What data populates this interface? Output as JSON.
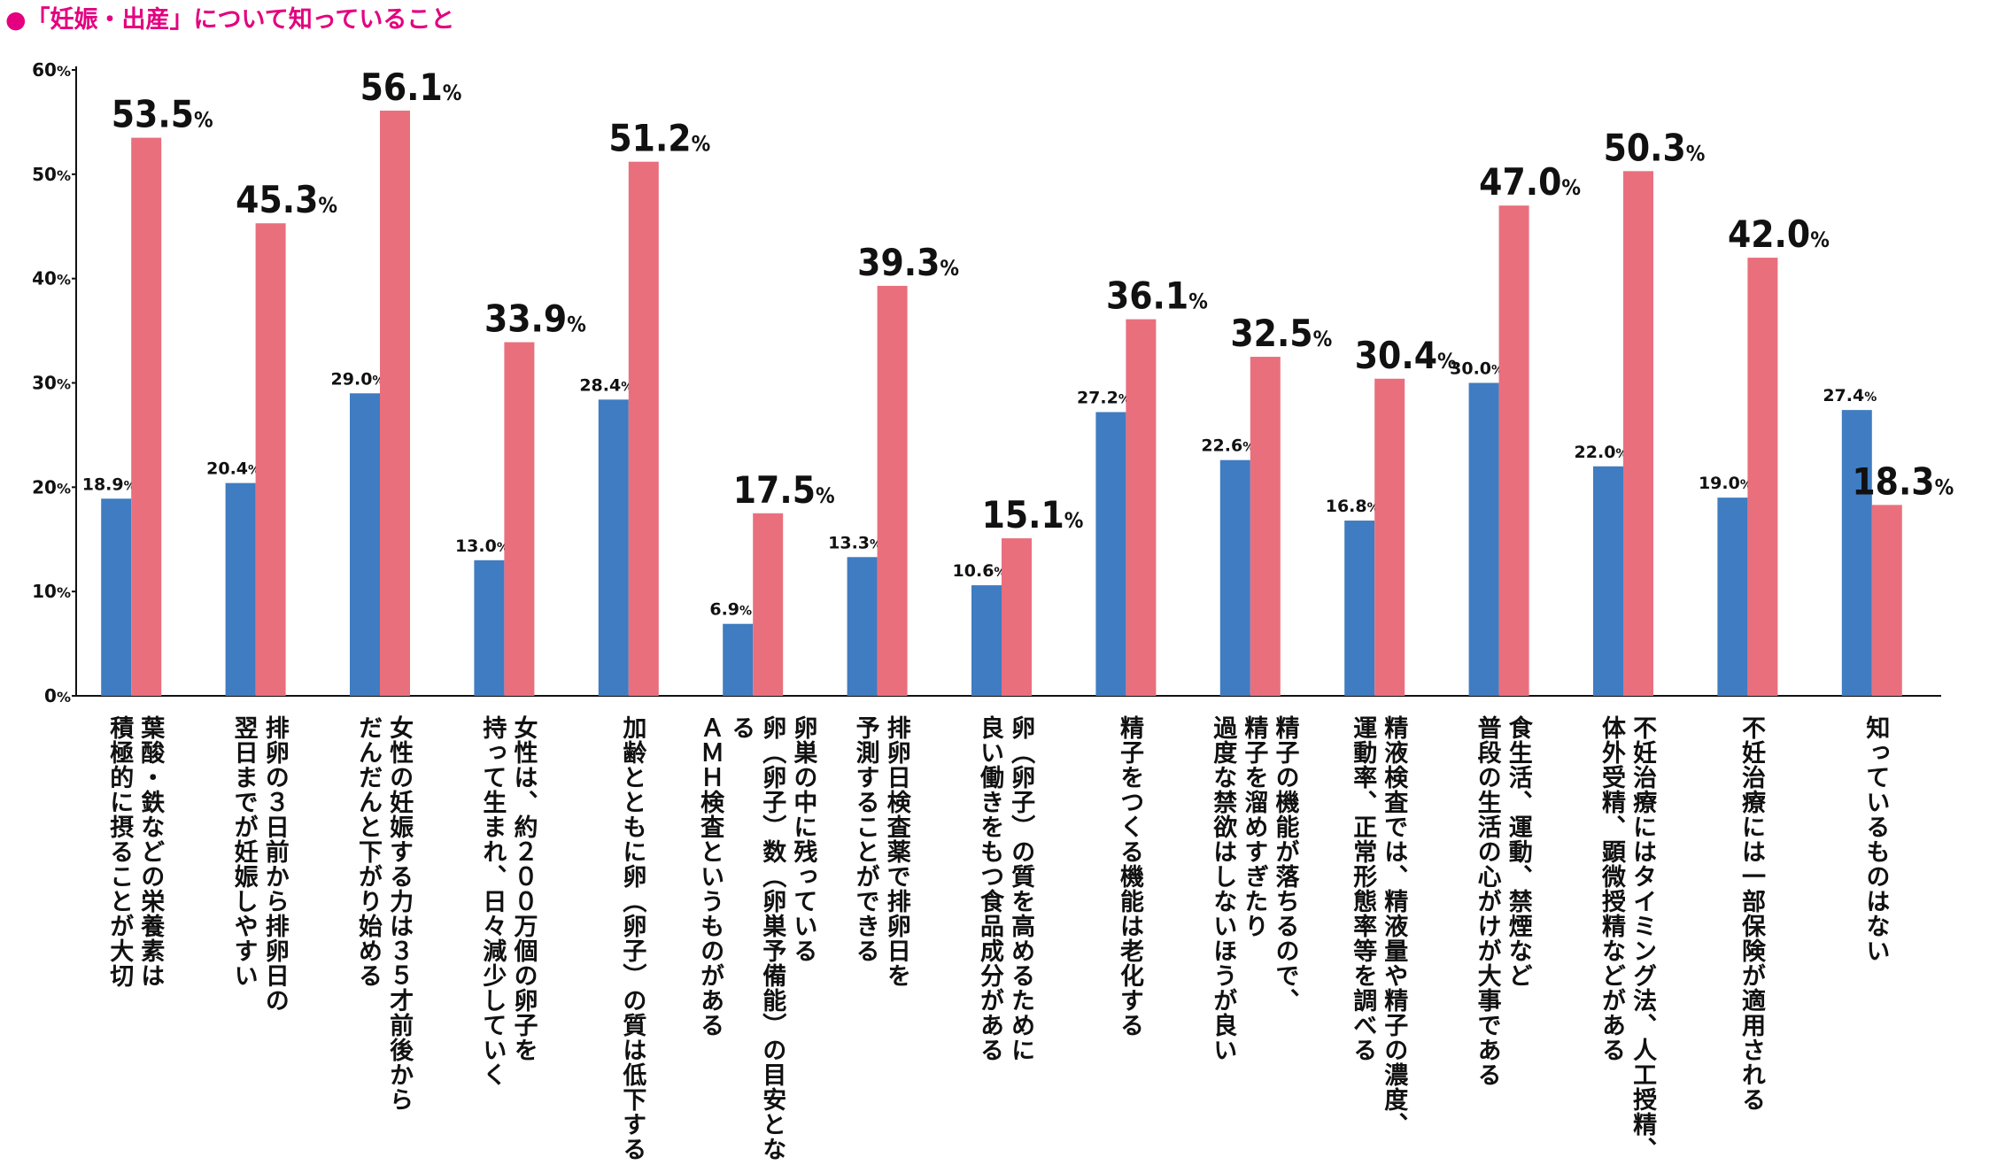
{
  "chart_data": {
    "type": "bar",
    "title": "●「妊娠・出産」について知っていること",
    "categories": [
      "葉酸・鉄などの栄養素は\n積極的に摂ることが大切",
      "排卵の３日前から排卵日の\n翌日までが妊娠しやすい",
      "女性の妊娠する力は３５才前後から\nだんだんと下がり始める",
      "女性は、約２００万個の卵子を\n持って生まれ、日々減少していく",
      "加齢とともに卵（卵子）の質は低下する",
      "卵巣の中に残っている\n卵（卵子）数（卵巣予備能）の目安となる\nＡＭＨ検査というものがある",
      "排卵日検査薬で排卵日を\n予測することができる",
      "卵（卵子）の質を高めるために\n良い働きをもつ食品成分がある",
      "精子をつくる機能は老化する",
      "精子の機能が落ちるので、\n精子を溜めすぎたり\n過度な禁欲はしないほうが良い",
      "精液検査では、精液量や精子の濃度、\n運動率、正常形態率等を調べる",
      "食生活、運動、禁煙など\n普段の生活の心がけが大事である",
      "不妊治療にはタイミング法、人工授精、\n体外受精、顕微授精などがある",
      "不妊治療には一部保険が適用される",
      "知っているものはない"
    ],
    "series": [
      {
        "color": "#3f7cc1",
        "values": [
          18.9,
          20.4,
          29.0,
          13.0,
          28.4,
          6.9,
          13.3,
          10.6,
          27.2,
          22.6,
          16.8,
          30.0,
          22.0,
          19.0,
          27.4
        ],
        "value_labels": [
          "18.9%",
          "20.4%",
          "29.0%",
          "13.0%",
          "28.4%",
          "6.9%",
          "13.3%",
          "10.6%",
          "27.2%",
          "22.6%",
          "16.8%",
          "30.0%",
          "22.0%",
          "19.0%",
          "27.4%"
        ]
      },
      {
        "color": "#e96f7d",
        "values": [
          53.5,
          45.3,
          56.1,
          33.9,
          51.2,
          17.5,
          39.3,
          15.1,
          36.1,
          32.5,
          30.4,
          47.0,
          50.3,
          42.0,
          18.3
        ],
        "value_labels": [
          "53.5%",
          "45.3%",
          "56.1%",
          "33.9%",
          "51.2%",
          "17.5%",
          "39.3%",
          "15.1%",
          "36.1%",
          "32.5%",
          "30.4%",
          "47.0%",
          "50.3%",
          "42.0%",
          "18.3%"
        ]
      }
    ],
    "ylim": [
      0,
      60
    ],
    "yticks": [
      {
        "value": 0,
        "label": "0%"
      },
      {
        "value": 10,
        "label": "10%"
      },
      {
        "value": 20,
        "label": "20%"
      },
      {
        "value": 30,
        "label": "30%"
      },
      {
        "value": 40,
        "label": "40%"
      },
      {
        "value": 50,
        "label": "50%"
      },
      {
        "value": 60,
        "label": "60%"
      }
    ],
    "grid": false
  }
}
